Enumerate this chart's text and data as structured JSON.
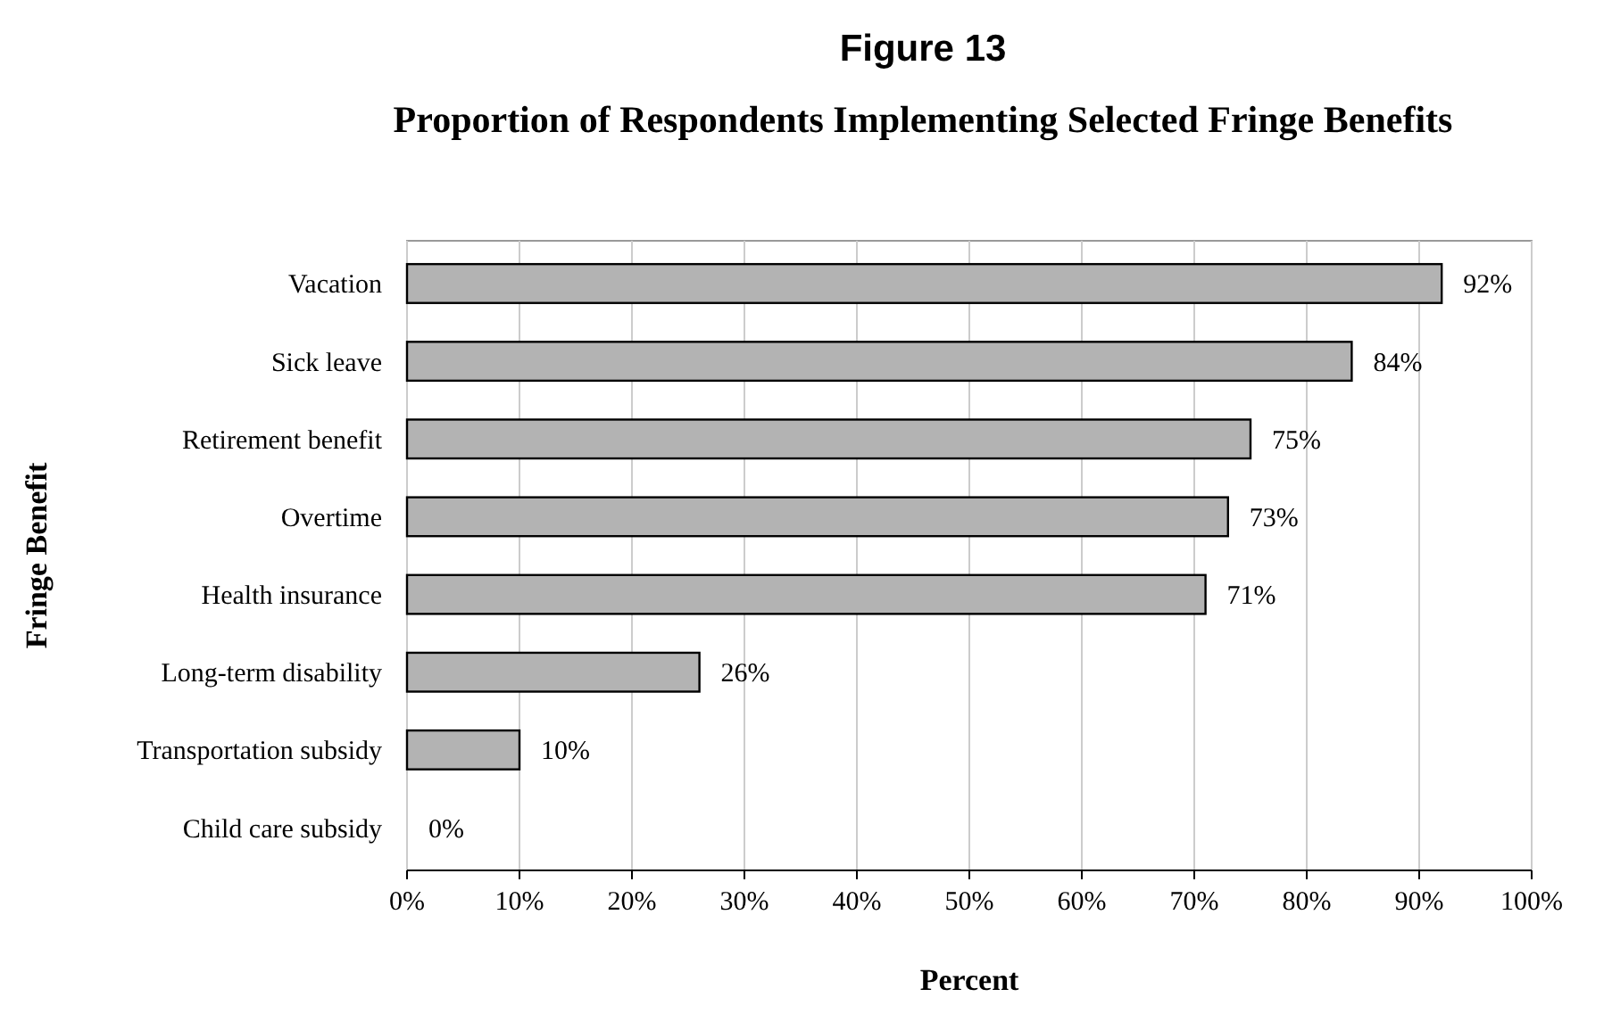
{
  "chart_data": {
    "type": "bar",
    "orientation": "horizontal",
    "title": "Figure 13",
    "subtitle": "Proportion of Respondents Implementing Selected Fringe Benefits",
    "xlabel": "Percent",
    "ylabel": "Fringe Benefit",
    "categories": [
      "Vacation",
      "Sick leave",
      "Retirement benefit",
      "Overtime",
      "Health insurance",
      "Long-term disability",
      "Transportation subsidy",
      "Child care subsidy"
    ],
    "values": [
      92,
      84,
      75,
      73,
      71,
      26,
      10,
      0
    ],
    "value_labels": [
      "92%",
      "84%",
      "75%",
      "73%",
      "71%",
      "26%",
      "10%",
      "0%"
    ],
    "color": "#b3b3b3",
    "xlim": [
      0,
      100
    ],
    "xticks": [
      {
        "value": 0,
        "label": "0%"
      },
      {
        "value": 10,
        "label": "10%"
      },
      {
        "value": 20,
        "label": "20%"
      },
      {
        "value": 30,
        "label": "30%"
      },
      {
        "value": 40,
        "label": "40%"
      },
      {
        "value": 50,
        "label": "50%"
      },
      {
        "value": 60,
        "label": "60%"
      },
      {
        "value": 70,
        "label": "70%"
      },
      {
        "value": 80,
        "label": "80%"
      },
      {
        "value": 90,
        "label": "90%"
      },
      {
        "value": 100,
        "label": "100%"
      }
    ],
    "grid": "x"
  }
}
